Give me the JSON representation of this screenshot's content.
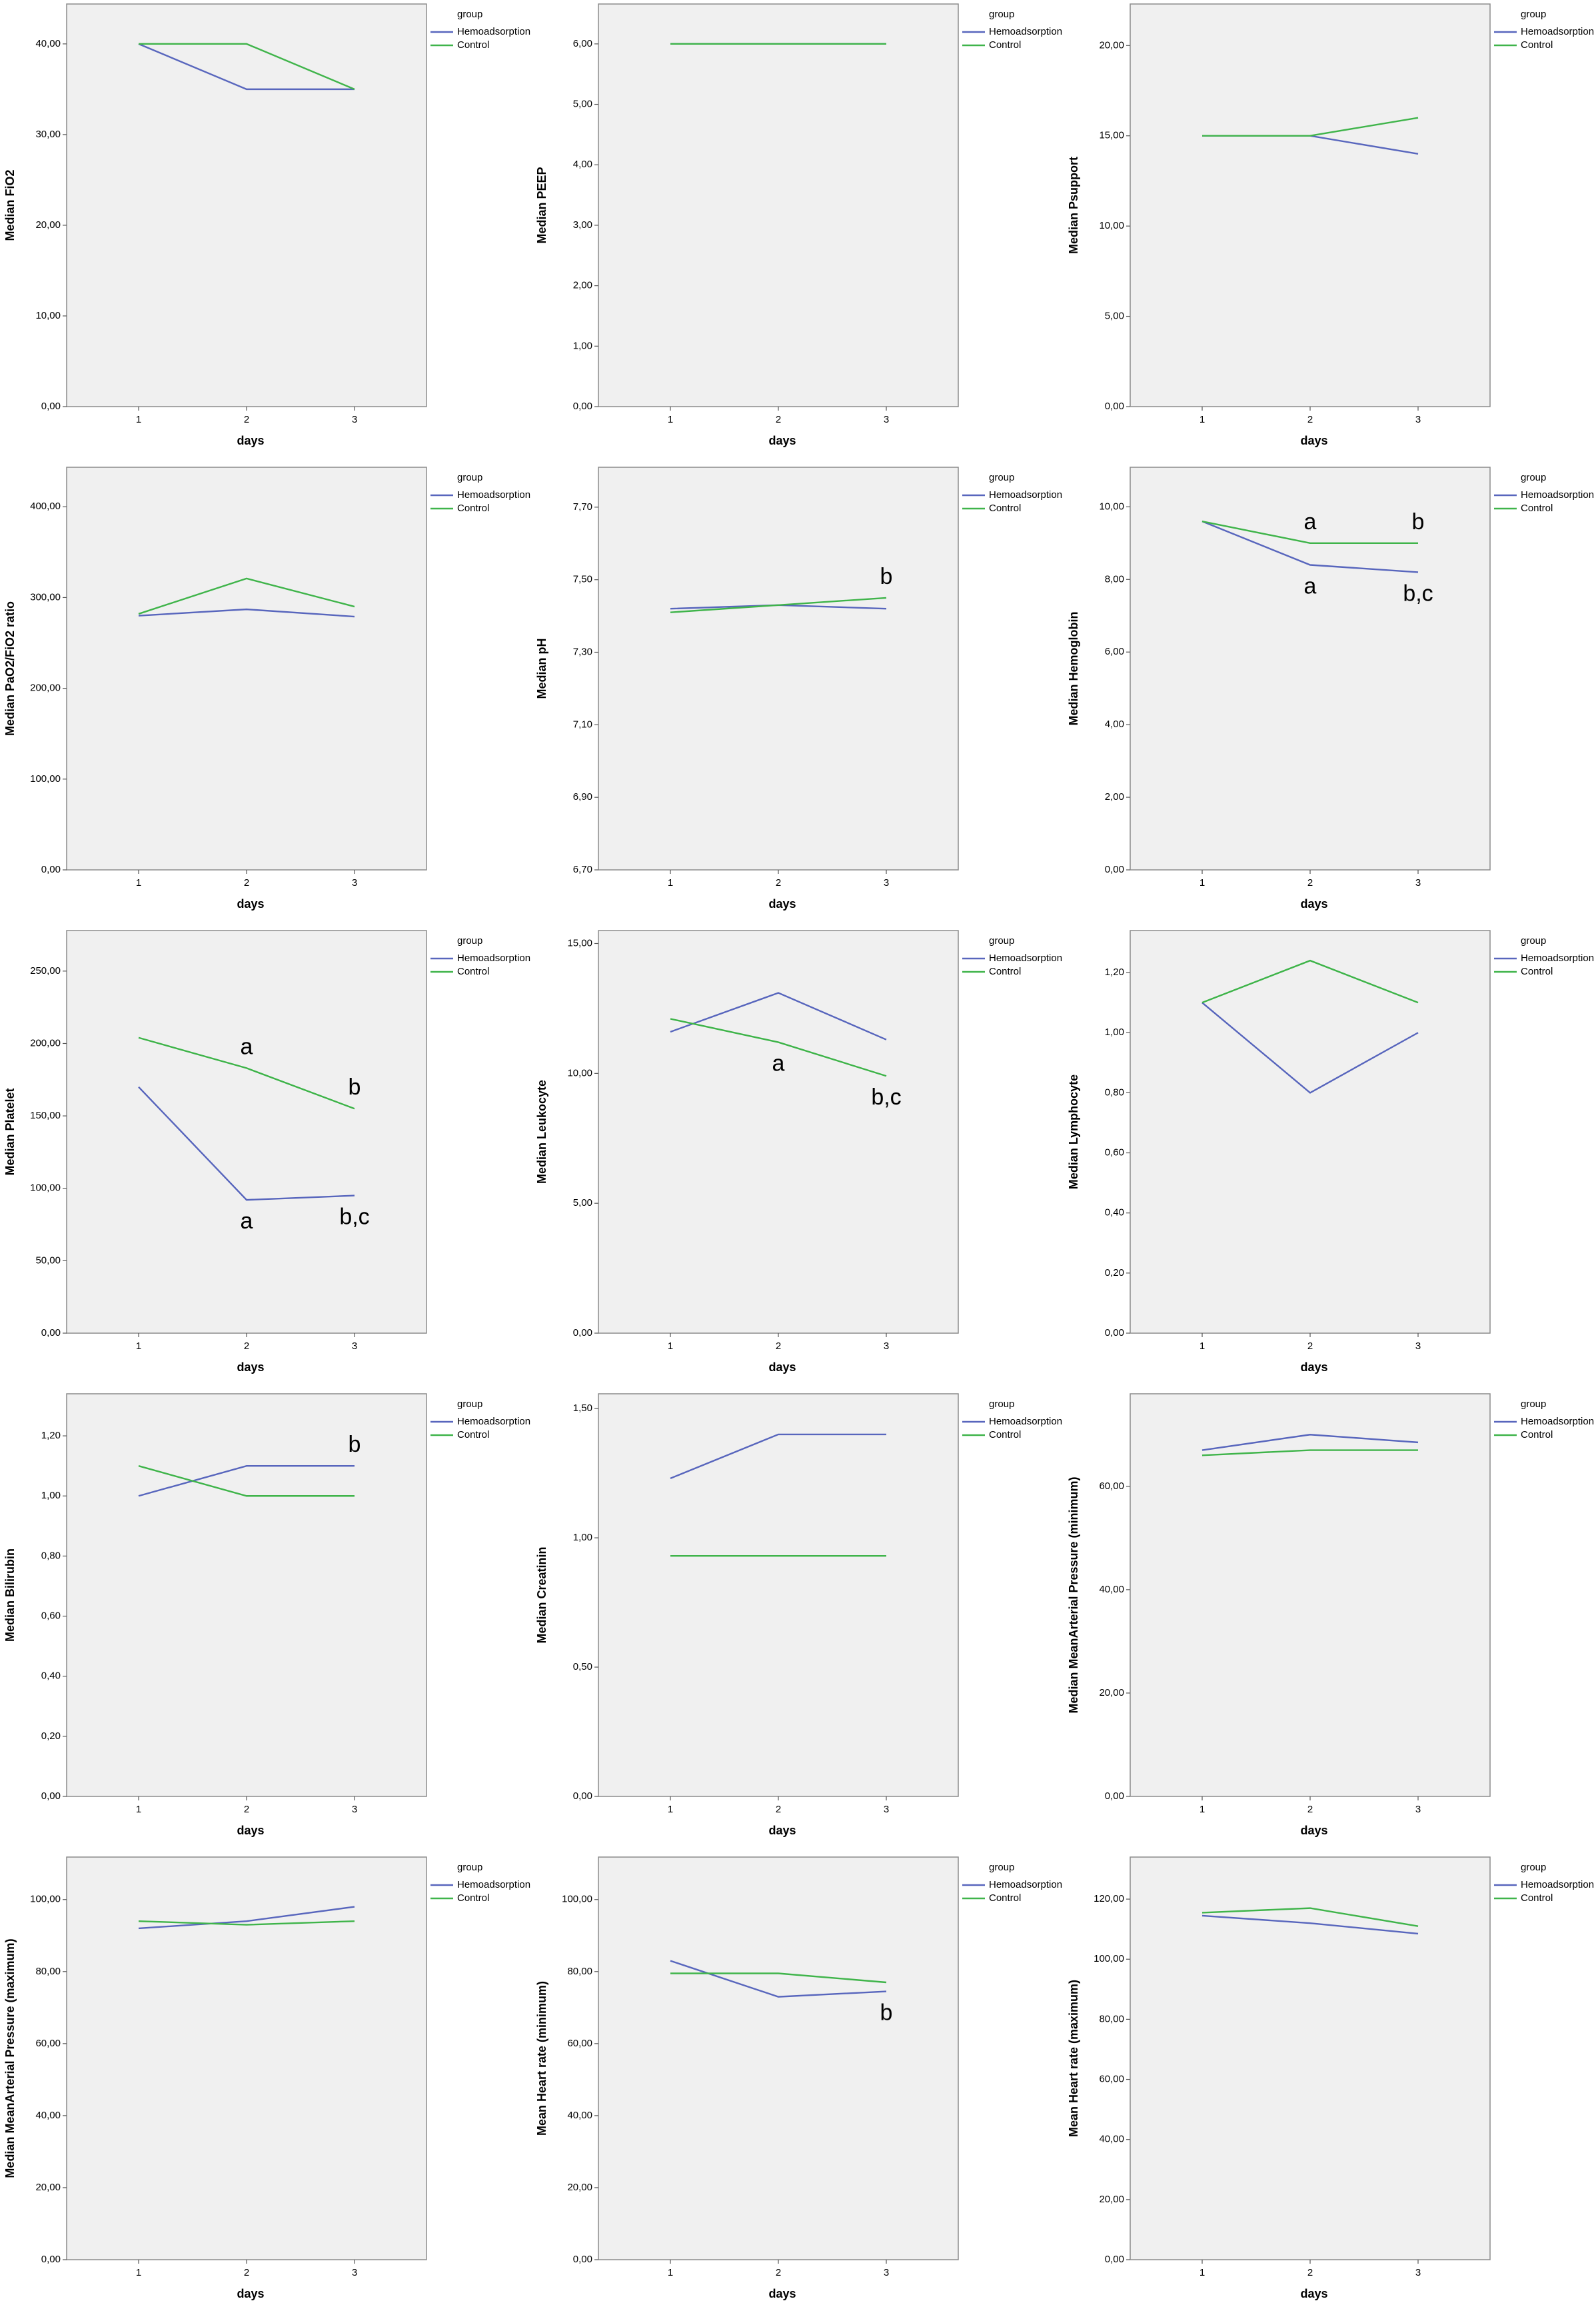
{
  "chart_data": [
    {
      "type": "line",
      "y_label": "Median FiO2",
      "x_label": "days",
      "legend_title": "group",
      "categories": [
        "1",
        "2",
        "3"
      ],
      "series": [
        {
          "name": "Hemoadsorption",
          "color": "#5866bd",
          "values": [
            40,
            35,
            35
          ]
        },
        {
          "name": "Control",
          "color": "#3fb44a",
          "values": [
            40,
            40,
            35
          ]
        }
      ],
      "ylim": [
        0,
        44.4
      ],
      "yticks": [
        {
          "value": 0,
          "label": "0,00"
        },
        {
          "value": 10,
          "label": "10,00"
        },
        {
          "value": 20,
          "label": "20,00"
        },
        {
          "value": 30,
          "label": "30,00"
        },
        {
          "value": 40,
          "label": "40,00"
        }
      ],
      "annotations": []
    },
    {
      "type": "line",
      "y_label": "Median PEEP",
      "x_label": "days",
      "legend_title": "group",
      "categories": [
        "1",
        "2",
        "3"
      ],
      "series": [
        {
          "name": "Hemoadsorption",
          "color": "#5866bd",
          "values": [
            6,
            6,
            6
          ]
        },
        {
          "name": "Control",
          "color": "#3fb44a",
          "values": [
            6,
            6,
            6
          ]
        }
      ],
      "ylim": [
        0,
        6.66
      ],
      "yticks": [
        {
          "value": 0,
          "label": "0,00"
        },
        {
          "value": 1,
          "label": "1,00"
        },
        {
          "value": 2,
          "label": "2,00"
        },
        {
          "value": 3,
          "label": "3,00"
        },
        {
          "value": 4,
          "label": "4,00"
        },
        {
          "value": 5,
          "label": "5,00"
        },
        {
          "value": 6,
          "label": "6,00"
        }
      ],
      "annotations": []
    },
    {
      "type": "line",
      "y_label": "Median Psupport",
      "x_label": "days",
      "legend_title": "group",
      "categories": [
        "1",
        "2",
        "3"
      ],
      "series": [
        {
          "name": "Hemoadsorption",
          "color": "#5866bd",
          "values": [
            15,
            15,
            14
          ]
        },
        {
          "name": "Control",
          "color": "#3fb44a",
          "values": [
            15,
            15,
            16
          ]
        }
      ],
      "ylim": [
        0,
        22.3
      ],
      "yticks": [
        {
          "value": 0,
          "label": "0,00"
        },
        {
          "value": 5,
          "label": "5,00"
        },
        {
          "value": 10,
          "label": "10,00"
        },
        {
          "value": 15,
          "label": "15,00"
        },
        {
          "value": 20,
          "label": "20,00"
        }
      ],
      "annotations": []
    },
    {
      "type": "line",
      "y_label": "Median PaO2/FiO2 ratio",
      "x_label": "days",
      "legend_title": "group",
      "categories": [
        "1",
        "2",
        "3"
      ],
      "series": [
        {
          "name": "Hemoadsorption",
          "color": "#5866bd",
          "values": [
            280,
            287,
            279
          ]
        },
        {
          "name": "Control",
          "color": "#3fb44a",
          "values": [
            282,
            321,
            290
          ]
        }
      ],
      "ylim": [
        0,
        443.5
      ],
      "yticks": [
        {
          "value": 0,
          "label": "0,00"
        },
        {
          "value": 100,
          "label": "100,00"
        },
        {
          "value": 200,
          "label": "200,00"
        },
        {
          "value": 300,
          "label": "300,00"
        },
        {
          "value": 400,
          "label": "400,00"
        }
      ],
      "annotations": []
    },
    {
      "type": "line",
      "y_label": "Median pH",
      "x_label": "days",
      "legend_title": "group",
      "categories": [
        "1",
        "2",
        "3"
      ],
      "series": [
        {
          "name": "Hemoadsorption",
          "color": "#5866bd",
          "values": [
            7.42,
            7.43,
            7.42
          ]
        },
        {
          "name": "Control",
          "color": "#3fb44a",
          "values": [
            7.41,
            7.43,
            7.45
          ]
        }
      ],
      "ylim": [
        6.7,
        7.81
      ],
      "yticks": [
        {
          "value": 6.7,
          "label": "6,70"
        },
        {
          "value": 6.9,
          "label": "6,90"
        },
        {
          "value": 7.1,
          "label": "7,10"
        },
        {
          "value": 7.3,
          "label": "7,30"
        },
        {
          "value": 7.5,
          "label": "7,50"
        },
        {
          "value": 7.7,
          "label": "7,70"
        }
      ],
      "annotations": [
        {
          "text": "b",
          "series": "Control",
          "category": "3",
          "placement": "above"
        }
      ]
    },
    {
      "type": "line",
      "y_label": "Median Hemoglobin",
      "x_label": "days",
      "legend_title": "group",
      "categories": [
        "1",
        "2",
        "3"
      ],
      "series": [
        {
          "name": "Hemoadsorption",
          "color": "#5866bd",
          "values": [
            9.6,
            8.4,
            8.2
          ]
        },
        {
          "name": "Control",
          "color": "#3fb44a",
          "values": [
            9.6,
            9.0,
            9.0
          ]
        }
      ],
      "ylim": [
        0,
        11.09
      ],
      "yticks": [
        {
          "value": 0,
          "label": "0,00"
        },
        {
          "value": 2,
          "label": "2,00"
        },
        {
          "value": 4,
          "label": "4,00"
        },
        {
          "value": 6,
          "label": "6,00"
        },
        {
          "value": 8,
          "label": "8,00"
        },
        {
          "value": 10,
          "label": "10,00"
        }
      ],
      "annotations": [
        {
          "text": "a",
          "series": "Control",
          "category": "2",
          "placement": "above"
        },
        {
          "text": "b",
          "series": "Control",
          "category": "3",
          "placement": "above"
        },
        {
          "text": "a",
          "series": "Hemoadsorption",
          "category": "2",
          "placement": "below"
        },
        {
          "text": "b,c",
          "series": "Hemoadsorption",
          "category": "3",
          "placement": "below"
        }
      ]
    },
    {
      "type": "line",
      "y_label": "Median Platelet",
      "x_label": "days",
      "legend_title": "group",
      "categories": [
        "1",
        "2",
        "3"
      ],
      "series": [
        {
          "name": "Hemoadsorption",
          "color": "#5866bd",
          "values": [
            170,
            92,
            95
          ]
        },
        {
          "name": "Control",
          "color": "#3fb44a",
          "values": [
            204,
            183,
            155
          ]
        }
      ],
      "ylim": [
        0,
        278
      ],
      "yticks": [
        {
          "value": 0,
          "label": "0,00"
        },
        {
          "value": 50,
          "label": "50,00"
        },
        {
          "value": 100,
          "label": "100,00"
        },
        {
          "value": 150,
          "label": "150,00"
        },
        {
          "value": 200,
          "label": "200,00"
        },
        {
          "value": 250,
          "label": "250,00"
        }
      ],
      "annotations": [
        {
          "text": "a",
          "series": "Control",
          "category": "2",
          "placement": "above"
        },
        {
          "text": "b",
          "series": "Control",
          "category": "3",
          "placement": "above"
        },
        {
          "text": "a",
          "series": "Hemoadsorption",
          "category": "2",
          "placement": "below"
        },
        {
          "text": "b,c",
          "series": "Hemoadsorption",
          "category": "3",
          "placement": "below"
        }
      ]
    },
    {
      "type": "line",
      "y_label": "Median Leukocyte",
      "x_label": "days",
      "legend_title": "group",
      "categories": [
        "1",
        "2",
        "3"
      ],
      "series": [
        {
          "name": "Hemoadsorption",
          "color": "#5866bd",
          "values": [
            11.6,
            13.1,
            11.3
          ]
        },
        {
          "name": "Control",
          "color": "#3fb44a",
          "values": [
            12.1,
            11.2,
            9.9
          ]
        }
      ],
      "ylim": [
        0,
        15.5
      ],
      "yticks": [
        {
          "value": 0,
          "label": "0,00"
        },
        {
          "value": 5,
          "label": "5,00"
        },
        {
          "value": 10,
          "label": "10,00"
        },
        {
          "value": 15,
          "label": "15,00"
        }
      ],
      "annotations": [
        {
          "text": "a",
          "series": "Control",
          "category": "2",
          "placement": "below"
        },
        {
          "text": "b,c",
          "series": "Control",
          "category": "3",
          "placement": "below"
        }
      ]
    },
    {
      "type": "line",
      "y_label": "Median Lymphocyte",
      "x_label": "days",
      "legend_title": "group",
      "categories": [
        "1",
        "2",
        "3"
      ],
      "series": [
        {
          "name": "Hemoadsorption",
          "color": "#5866bd",
          "values": [
            1.1,
            0.8,
            1.0
          ]
        },
        {
          "name": "Control",
          "color": "#3fb44a",
          "values": [
            1.1,
            1.24,
            1.1
          ]
        }
      ],
      "ylim": [
        0,
        1.34
      ],
      "yticks": [
        {
          "value": 0,
          "label": "0,00"
        },
        {
          "value": 0.2,
          "label": "0,20"
        },
        {
          "value": 0.4,
          "label": "0,40"
        },
        {
          "value": 0.6,
          "label": "0,60"
        },
        {
          "value": 0.8,
          "label": "0,80"
        },
        {
          "value": 1.0,
          "label": "1,00"
        },
        {
          "value": 1.2,
          "label": "1,20"
        }
      ],
      "annotations": []
    },
    {
      "type": "line",
      "y_label": "Median Bilirubin",
      "x_label": "days",
      "legend_title": "group",
      "categories": [
        "1",
        "2",
        "3"
      ],
      "series": [
        {
          "name": "Hemoadsorption",
          "color": "#5866bd",
          "values": [
            1.0,
            1.1,
            1.1
          ]
        },
        {
          "name": "Control",
          "color": "#3fb44a",
          "values": [
            1.1,
            1.0,
            1.0
          ]
        }
      ],
      "ylim": [
        0,
        1.34
      ],
      "yticks": [
        {
          "value": 0,
          "label": "0,00"
        },
        {
          "value": 0.2,
          "label": "0,20"
        },
        {
          "value": 0.4,
          "label": "0,40"
        },
        {
          "value": 0.6,
          "label": "0,60"
        },
        {
          "value": 0.8,
          "label": "0,80"
        },
        {
          "value": 1.0,
          "label": "1,00"
        },
        {
          "value": 1.2,
          "label": "1,20"
        }
      ],
      "annotations": [
        {
          "text": "b",
          "series": "Hemoadsorption",
          "category": "3",
          "placement": "above"
        }
      ]
    },
    {
      "type": "line",
      "y_label": "Median Creatinin",
      "x_label": "days",
      "legend_title": "group",
      "categories": [
        "1",
        "2",
        "3"
      ],
      "series": [
        {
          "name": "Hemoadsorption",
          "color": "#5866bd",
          "values": [
            1.23,
            1.4,
            1.4
          ]
        },
        {
          "name": "Control",
          "color": "#3fb44a",
          "values": [
            0.93,
            0.93,
            0.93
          ]
        }
      ],
      "ylim": [
        0,
        1.557
      ],
      "yticks": [
        {
          "value": 0,
          "label": "0,00"
        },
        {
          "value": 0.5,
          "label": "0,50"
        },
        {
          "value": 1.0,
          "label": "1,00"
        },
        {
          "value": 1.5,
          "label": "1,50"
        }
      ],
      "annotations": []
    },
    {
      "type": "line",
      "y_label": "Median MeanArterial Pressure (minimum)",
      "x_label": "days",
      "legend_title": "group",
      "categories": [
        "1",
        "2",
        "3"
      ],
      "series": [
        {
          "name": "Hemoadsorption",
          "color": "#5866bd",
          "values": [
            67,
            70,
            68.5
          ]
        },
        {
          "name": "Control",
          "color": "#3fb44a",
          "values": [
            66,
            67,
            67
          ]
        }
      ],
      "ylim": [
        0,
        77.9
      ],
      "yticks": [
        {
          "value": 0,
          "label": "0,00"
        },
        {
          "value": 20,
          "label": "20,00"
        },
        {
          "value": 40,
          "label": "40,00"
        },
        {
          "value": 60,
          "label": "60,00"
        }
      ],
      "annotations": []
    },
    {
      "type": "line",
      "y_label": "Median MeanArterial Pressure (maximum)",
      "x_label": "days",
      "legend_title": "group",
      "categories": [
        "1",
        "2",
        "3"
      ],
      "series": [
        {
          "name": "Hemoadsorption",
          "color": "#5866bd",
          "values": [
            92,
            94,
            98
          ]
        },
        {
          "name": "Control",
          "color": "#3fb44a",
          "values": [
            94,
            93,
            94
          ]
        }
      ],
      "ylim": [
        0,
        111.8
      ],
      "yticks": [
        {
          "value": 0,
          "label": "0,00"
        },
        {
          "value": 20,
          "label": "20,00"
        },
        {
          "value": 40,
          "label": "40,00"
        },
        {
          "value": 60,
          "label": "60,00"
        },
        {
          "value": 80,
          "label": "80,00"
        },
        {
          "value": 100,
          "label": "100,00"
        }
      ],
      "annotations": []
    },
    {
      "type": "line",
      "y_label": "Mean Heart rate (minimum)",
      "x_label": "days",
      "legend_title": "group",
      "categories": [
        "1",
        "2",
        "3"
      ],
      "series": [
        {
          "name": "Hemoadsorption",
          "color": "#5866bd",
          "values": [
            83,
            73,
            74.5
          ]
        },
        {
          "name": "Control",
          "color": "#3fb44a",
          "values": [
            79.5,
            79.5,
            77
          ]
        }
      ],
      "ylim": [
        0,
        111.8
      ],
      "yticks": [
        {
          "value": 0,
          "label": "0,00"
        },
        {
          "value": 20,
          "label": "20,00"
        },
        {
          "value": 40,
          "label": "40,00"
        },
        {
          "value": 60,
          "label": "60,00"
        },
        {
          "value": 80,
          "label": "80,00"
        },
        {
          "value": 100,
          "label": "100,00"
        }
      ],
      "annotations": [
        {
          "text": "b",
          "series": "Hemoadsorption",
          "category": "3",
          "placement": "below"
        }
      ]
    },
    {
      "type": "line",
      "y_label": "Mean Heart rate (maximum)",
      "x_label": "days",
      "legend_title": "group",
      "categories": [
        "1",
        "2",
        "3"
      ],
      "series": [
        {
          "name": "Hemoadsorption",
          "color": "#5866bd",
          "values": [
            114.5,
            112,
            108.5
          ]
        },
        {
          "name": "Control",
          "color": "#3fb44a",
          "values": [
            115.5,
            117,
            111
          ]
        }
      ],
      "ylim": [
        0,
        134
      ],
      "yticks": [
        {
          "value": 0,
          "label": "0,00"
        },
        {
          "value": 20,
          "label": "20,00"
        },
        {
          "value": 40,
          "label": "40,00"
        },
        {
          "value": 60,
          "label": "60,00"
        },
        {
          "value": 80,
          "label": "80,00"
        },
        {
          "value": 100,
          "label": "100,00"
        },
        {
          "value": 120,
          "label": "120,00"
        }
      ],
      "annotations": []
    }
  ]
}
